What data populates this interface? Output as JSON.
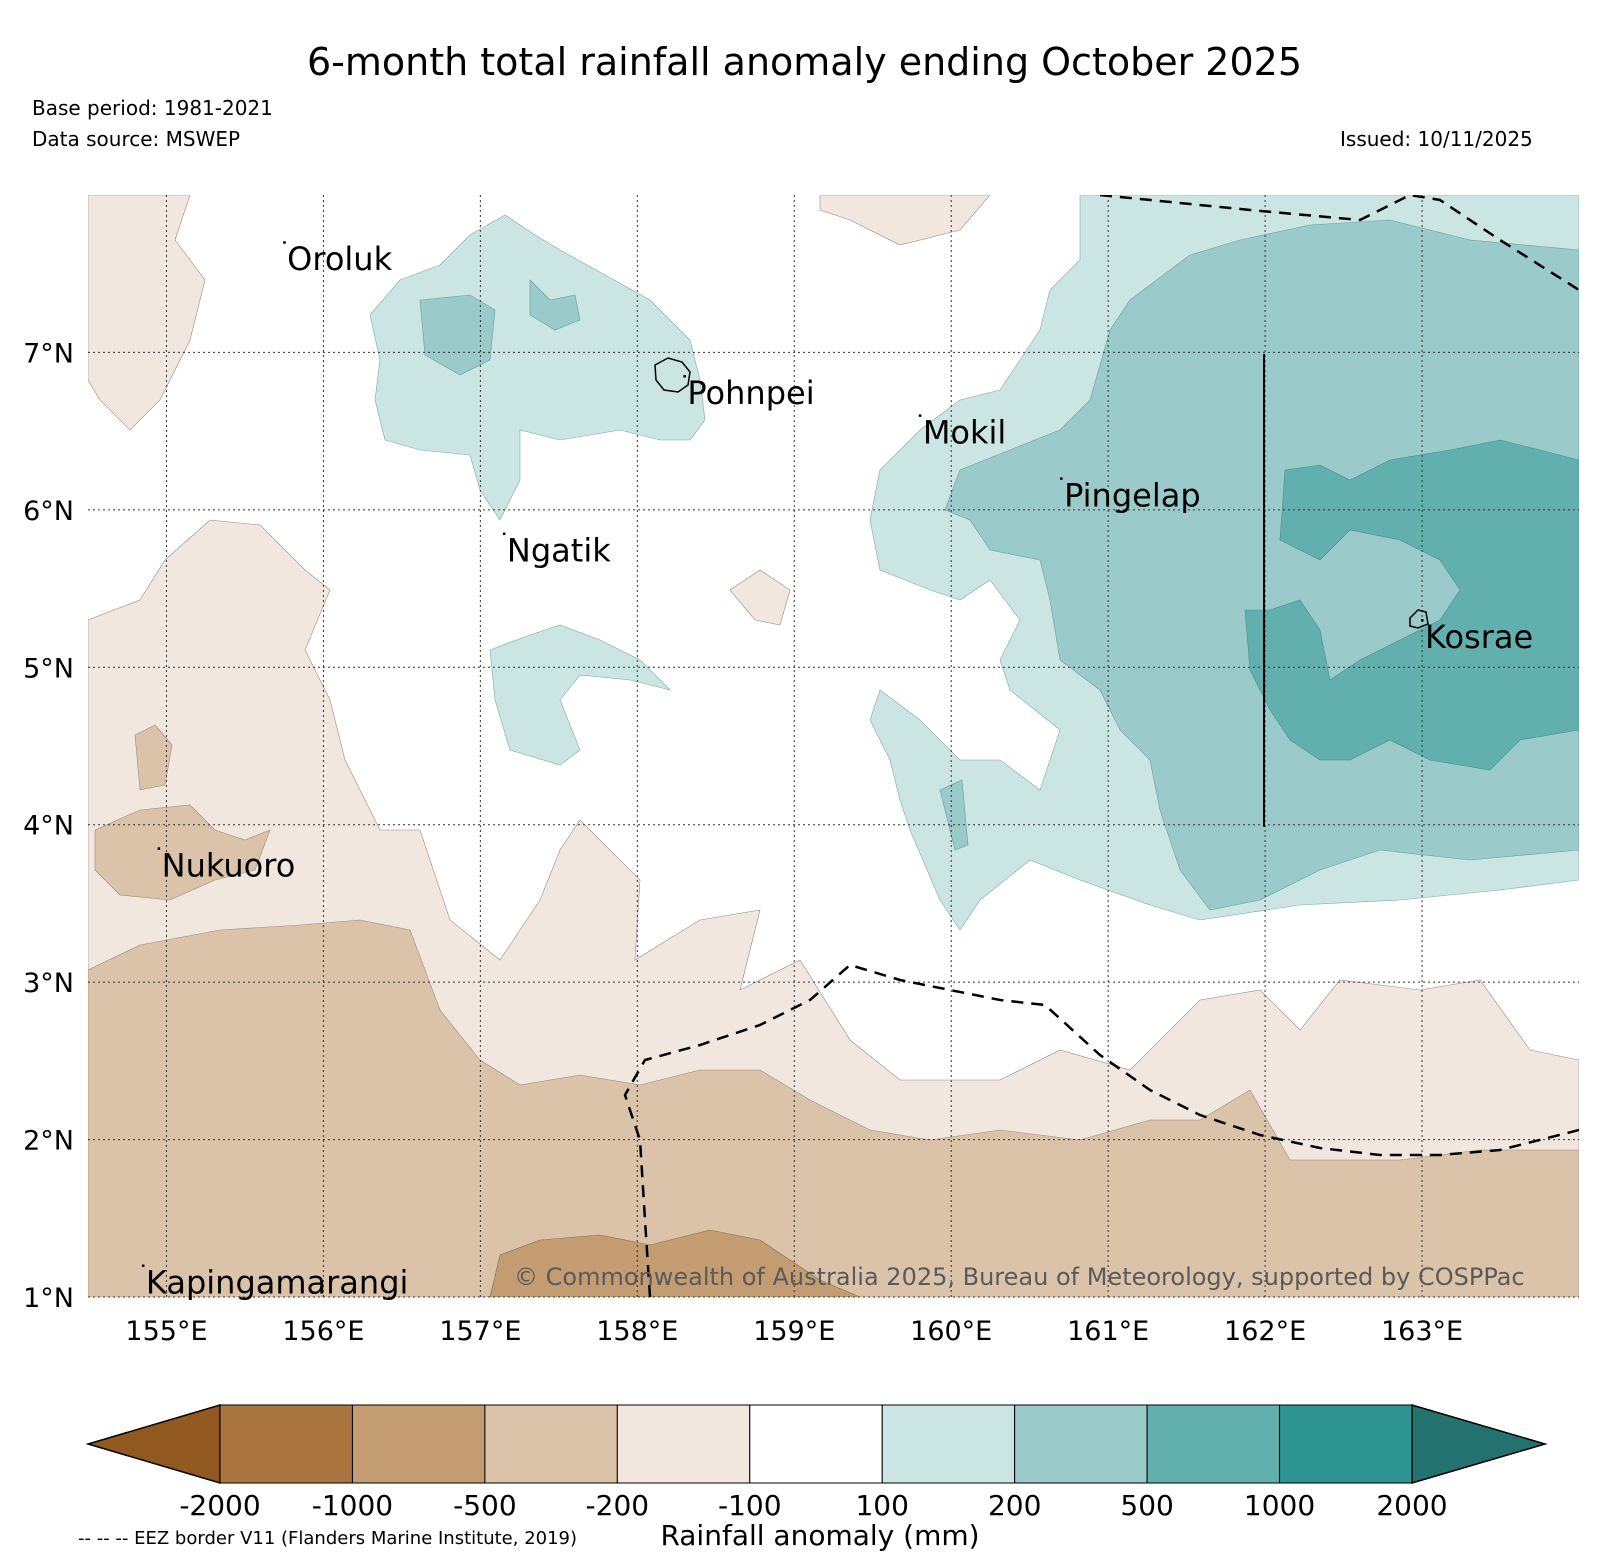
{
  "title": "6-month total rainfall anomaly ending October 2025",
  "base_period": "Base period: 1981-2021",
  "data_source": "Data source: MSWEP",
  "issued": "Issued: 10/11/2025",
  "credit": "© Commonwealth of Australia 2025, Bureau of Meteorology, supported by COSPPac",
  "eez_note": "-- -- -- EEZ border V11 (Flanders Marine Institute, 2019)",
  "map": {
    "lon_range": [
      154.5,
      164.0
    ],
    "lat_range": [
      1.0,
      8.0
    ],
    "lon_ticks": [
      "155°E",
      "156°E",
      "157°E",
      "158°E",
      "159°E",
      "160°E",
      "161°E",
      "162°E",
      "163°E"
    ],
    "lat_ticks": [
      "1°N",
      "2°N",
      "3°N",
      "4°N",
      "5°N",
      "6°N",
      "7°N"
    ],
    "places": [
      {
        "name": "Oroluk",
        "lon": 155.75,
        "lat": 7.7
      },
      {
        "name": "Pohnpei",
        "lon": 158.3,
        "lat": 6.85
      },
      {
        "name": "Mokil",
        "lon": 159.8,
        "lat": 6.6
      },
      {
        "name": "Pingelap",
        "lon": 160.7,
        "lat": 6.2
      },
      {
        "name": "Ngatik",
        "lon": 157.15,
        "lat": 5.85
      },
      {
        "name": "Kosrae",
        "lon": 163.0,
        "lat": 5.3
      },
      {
        "name": "Nukuoro",
        "lon": 154.95,
        "lat": 3.85
      },
      {
        "name": "Kapingamarangi",
        "lon": 154.85,
        "lat": 1.2
      }
    ]
  },
  "colorbar": {
    "label": "Rainfall anomaly (mm)",
    "ticks": [
      "-2000",
      "-1000",
      "-500",
      "-200",
      "-100",
      "100",
      "200",
      "500",
      "1000",
      "2000"
    ],
    "colors": [
      "#915920",
      "#ab7540",
      "#c39c72",
      "#dbc3aa",
      "#f1e7df",
      "#ffffff",
      "#cbe5e3",
      "#9acbca",
      "#62b0ae",
      "#2e9491",
      "#23726f"
    ]
  }
}
